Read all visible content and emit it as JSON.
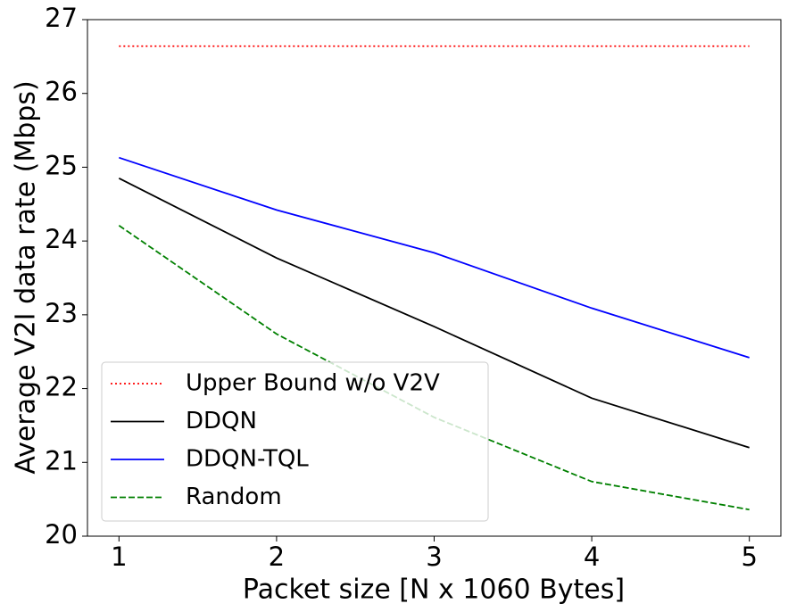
{
  "chart_data": {
    "type": "line",
    "x_label": "Packet size [N x 1060 Bytes]",
    "y_label": "Average V2I data rate (Mbps)",
    "x": [
      1,
      2,
      3,
      4,
      5
    ],
    "xlim": [
      0.8,
      5.2
    ],
    "xticks": [
      1,
      2,
      3,
      4,
      5
    ],
    "ylim": [
      20,
      27
    ],
    "yticks": [
      20,
      21,
      22,
      23,
      24,
      25,
      26,
      27
    ],
    "legend": "lower left",
    "series": [
      {
        "name": "Upper Bound w/o V2V",
        "color": "#ff0000",
        "linestyle": "dotted",
        "values": [
          26.64,
          26.64,
          26.64,
          26.64,
          26.64
        ]
      },
      {
        "name": "DDQN",
        "color": "#000000",
        "linestyle": "solid",
        "values": [
          24.85,
          23.77,
          22.84,
          21.87,
          21.2
        ]
      },
      {
        "name": "DDQN-TQL",
        "color": "#0000ff",
        "linestyle": "solid",
        "values": [
          25.13,
          24.42,
          23.84,
          23.09,
          22.42
        ]
      },
      {
        "name": "Random",
        "color": "#008000",
        "linestyle": "dashed",
        "values": [
          24.21,
          22.74,
          21.61,
          20.74,
          20.36
        ]
      }
    ]
  }
}
